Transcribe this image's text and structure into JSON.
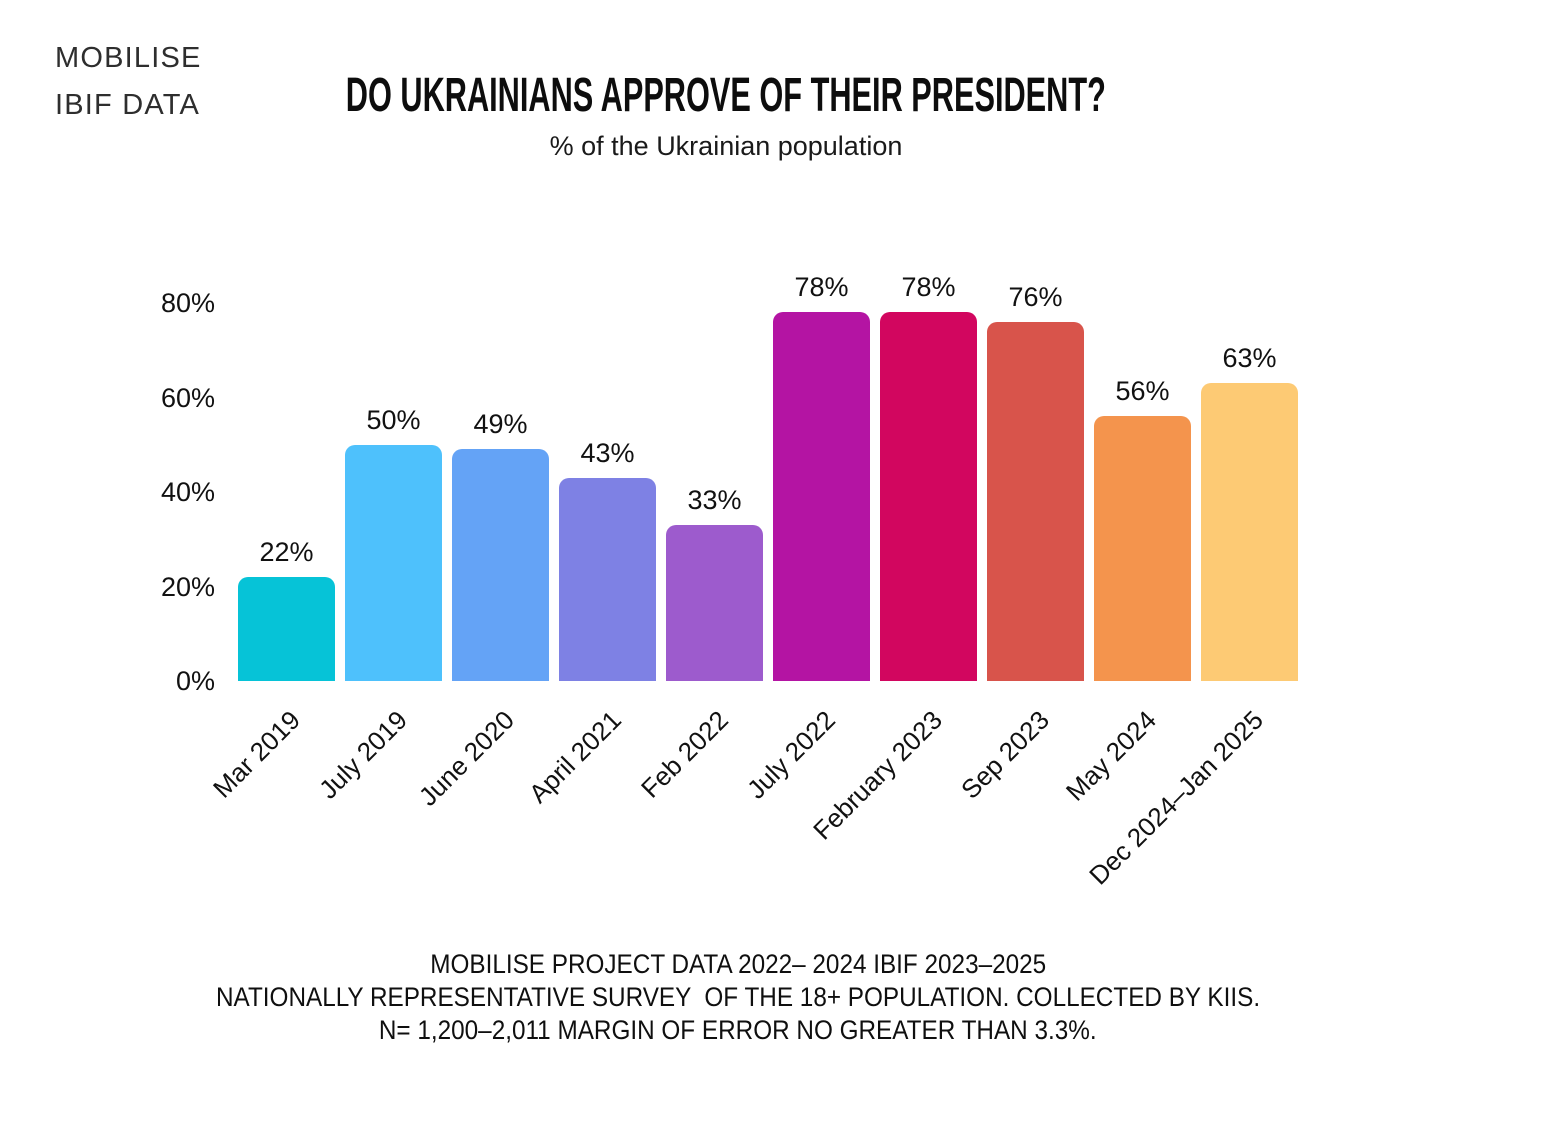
{
  "brand": {
    "line1": "MOBILISE",
    "line2": "IBIF DATA"
  },
  "header": {
    "title": "DO UKRAINIANS APPROVE OF THEIR PRESIDENT?",
    "subtitle": "% of the Ukrainian population"
  },
  "chart_data": {
    "type": "bar",
    "title": "DO UKRAINIANS APPROVE OF THEIR PRESIDENT?",
    "subtitle": "% of the Ukrainian population",
    "categories": [
      "Mar 2019",
      "July 2019",
      "June 2020",
      "April 2021",
      "Feb 2022",
      "July 2022",
      "February 2023",
      "Sep 2023",
      "May 2024",
      "Dec 2024–Jan 2025"
    ],
    "values": [
      22,
      50,
      49,
      43,
      33,
      78,
      78,
      76,
      56,
      63
    ],
    "value_labels": [
      "22%",
      "50%",
      "49%",
      "43%",
      "33%",
      "78%",
      "78%",
      "76%",
      "56%",
      "63%"
    ],
    "bar_colors": [
      "#06c3d7",
      "#4ec1fc",
      "#64a3f6",
      "#7e81e4",
      "#9d5bcd",
      "#b414a3",
      "#d2065f",
      "#d8544b",
      "#f4944d",
      "#fdca74"
    ],
    "xlabel": "",
    "ylabel": "",
    "ylim": [
      0,
      80
    ],
    "yticks": [
      0,
      20,
      40,
      60,
      80
    ],
    "ytick_labels": [
      "0%",
      "20%",
      "40%",
      "60%",
      "80%"
    ],
    "grid": false,
    "legend": "none"
  },
  "footer": {
    "lines": [
      "MOBILISE PROJECT DATA 2022– 2024 IBIF 2023–2025",
      "NATIONALLY REPRESENTATIVE SURVEY  OF THE 18+ POPULATION. COLLECTED BY KIIS.",
      "N= 1,200–2,011 MARGIN OF ERROR NO GREATER THAN 3.3%."
    ]
  }
}
